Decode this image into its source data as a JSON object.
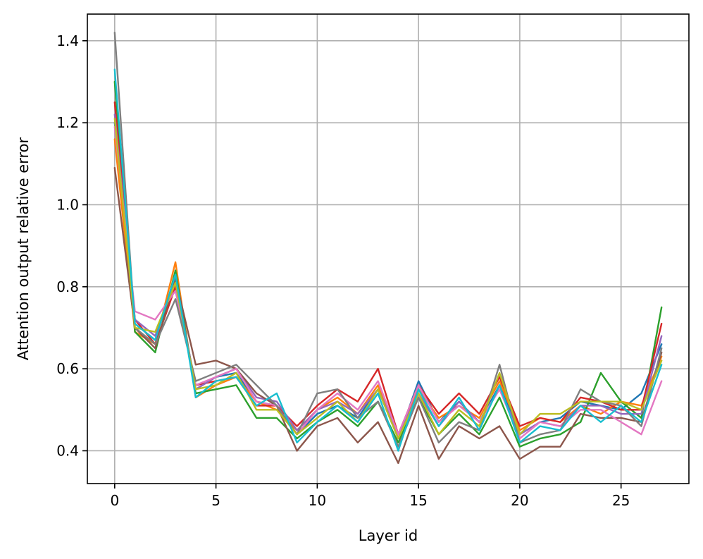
{
  "chart_data": {
    "type": "line",
    "title": "",
    "xlabel": "Layer id",
    "ylabel": "Attention output relative error",
    "xlim": [
      -1.35,
      28.35
    ],
    "ylim": [
      0.32,
      1.465
    ],
    "xticks": [
      0,
      5,
      10,
      15,
      20,
      25
    ],
    "xtick_labels": [
      "0",
      "5",
      "10",
      "15",
      "20",
      "25"
    ],
    "yticks": [
      0.4,
      0.6,
      0.8,
      1.0,
      1.2,
      1.4
    ],
    "ytick_labels": [
      "0.4",
      "0.6",
      "0.8",
      "1.0",
      "1.2",
      "1.4"
    ],
    "grid": true,
    "legend": "none",
    "x": [
      0,
      1,
      2,
      3,
      4,
      5,
      6,
      7,
      8,
      9,
      10,
      11,
      12,
      13,
      14,
      15,
      16,
      17,
      18,
      19,
      20,
      21,
      22,
      23,
      24,
      25,
      26,
      27
    ],
    "series": [
      {
        "color": "#1f77b4",
        "values": [
          1.2,
          0.71,
          0.67,
          0.83,
          0.55,
          0.58,
          0.59,
          0.52,
          0.51,
          0.44,
          0.49,
          0.51,
          0.48,
          0.55,
          0.43,
          0.57,
          0.47,
          0.52,
          0.47,
          0.56,
          0.44,
          0.47,
          0.48,
          0.52,
          0.51,
          0.5,
          0.54,
          0.66
        ]
      },
      {
        "color": "#ff7f0e",
        "values": [
          1.16,
          0.69,
          0.66,
          0.86,
          0.53,
          0.56,
          0.58,
          0.52,
          0.5,
          0.45,
          0.5,
          0.53,
          0.49,
          0.56,
          0.43,
          0.55,
          0.48,
          0.51,
          0.48,
          0.57,
          0.45,
          0.48,
          0.47,
          0.51,
          0.49,
          0.52,
          0.51,
          0.63
        ]
      },
      {
        "color": "#2ca02c",
        "values": [
          1.3,
          0.69,
          0.64,
          0.84,
          0.54,
          0.55,
          0.56,
          0.48,
          0.48,
          0.43,
          0.47,
          0.5,
          0.46,
          0.52,
          0.42,
          0.53,
          0.44,
          0.49,
          0.44,
          0.53,
          0.41,
          0.43,
          0.44,
          0.47,
          0.59,
          0.52,
          0.48,
          0.75
        ]
      },
      {
        "color": "#d62728",
        "values": [
          1.25,
          0.72,
          0.66,
          0.8,
          0.56,
          0.57,
          0.58,
          0.51,
          0.51,
          0.46,
          0.51,
          0.55,
          0.52,
          0.6,
          0.44,
          0.56,
          0.49,
          0.54,
          0.49,
          0.58,
          0.46,
          0.48,
          0.47,
          0.53,
          0.52,
          0.5,
          0.5,
          0.71
        ]
      },
      {
        "color": "#9467bd",
        "values": [
          1.22,
          0.72,
          0.68,
          0.82,
          0.55,
          0.58,
          0.6,
          0.53,
          0.52,
          0.45,
          0.5,
          0.52,
          0.49,
          0.55,
          0.44,
          0.54,
          0.46,
          0.52,
          0.47,
          0.55,
          0.44,
          0.47,
          0.46,
          0.51,
          0.51,
          0.49,
          0.49,
          0.68
        ]
      },
      {
        "color": "#8c564b",
        "values": [
          1.09,
          0.7,
          0.65,
          0.82,
          0.61,
          0.62,
          0.6,
          0.54,
          0.51,
          0.4,
          0.46,
          0.48,
          0.42,
          0.47,
          0.37,
          0.51,
          0.38,
          0.46,
          0.43,
          0.46,
          0.38,
          0.41,
          0.41,
          0.49,
          0.48,
          0.48,
          0.47,
          0.64
        ]
      },
      {
        "color": "#e377c2",
        "values": [
          1.19,
          0.74,
          0.72,
          0.79,
          0.56,
          0.58,
          0.6,
          0.52,
          0.51,
          0.44,
          0.5,
          0.54,
          0.5,
          0.57,
          0.44,
          0.56,
          0.47,
          0.51,
          0.47,
          0.55,
          0.43,
          0.47,
          0.46,
          0.5,
          0.5,
          0.47,
          0.44,
          0.57
        ]
      },
      {
        "color": "#7f7f7f",
        "values": [
          1.42,
          0.7,
          0.66,
          0.77,
          0.57,
          0.59,
          0.61,
          0.56,
          0.51,
          0.44,
          0.54,
          0.55,
          0.48,
          0.52,
          0.41,
          0.53,
          0.42,
          0.47,
          0.45,
          0.61,
          0.42,
          0.44,
          0.45,
          0.55,
          0.52,
          0.51,
          0.46,
          0.65
        ]
      },
      {
        "color": "#bcbd22",
        "values": [
          1.21,
          0.7,
          0.69,
          0.81,
          0.55,
          0.56,
          0.59,
          0.5,
          0.5,
          0.44,
          0.48,
          0.52,
          0.47,
          0.55,
          0.43,
          0.54,
          0.44,
          0.5,
          0.46,
          0.59,
          0.44,
          0.49,
          0.49,
          0.52,
          0.52,
          0.52,
          0.5,
          0.62
        ]
      },
      {
        "color": "#17becf",
        "values": [
          1.33,
          0.71,
          0.67,
          0.83,
          0.53,
          0.57,
          0.58,
          0.51,
          0.54,
          0.42,
          0.47,
          0.51,
          0.47,
          0.54,
          0.4,
          0.55,
          0.46,
          0.53,
          0.45,
          0.56,
          0.42,
          0.46,
          0.45,
          0.51,
          0.47,
          0.51,
          0.47,
          0.61
        ]
      }
    ]
  }
}
